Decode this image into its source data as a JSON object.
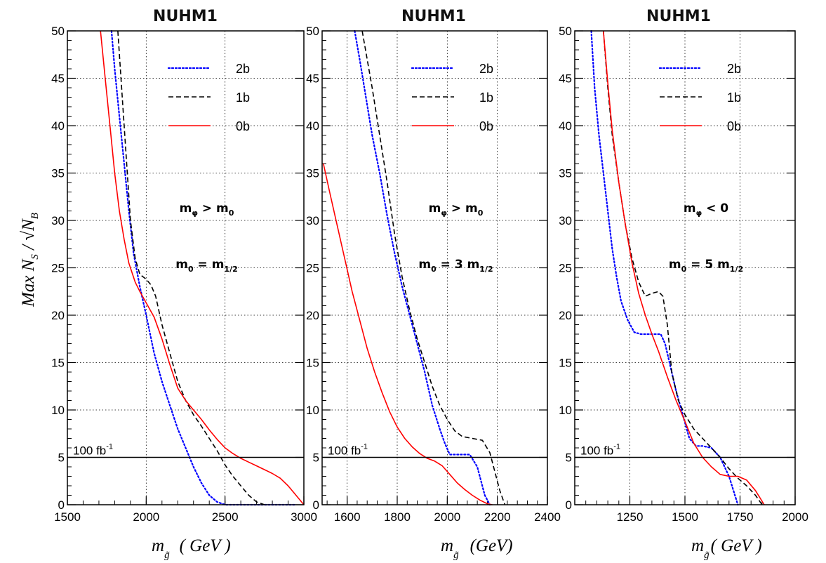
{
  "y_axis_title": {
    "lead": "Max N",
    "sub_s": "S",
    "mid": " / √N",
    "sub_b": "B"
  },
  "x_axis_title": {
    "m": "m",
    "sub": "g̃",
    "gev": "( GeV )",
    "gev_alt": "(GeV)"
  },
  "chart_data": [
    {
      "type": "line",
      "title": "NUHM1",
      "xlim": [
        1500,
        3000
      ],
      "ylim": [
        0,
        50
      ],
      "xticks": [
        "1500",
        "2000",
        "2500",
        "3000"
      ],
      "xtick_values": [
        1500,
        2000,
        2500,
        3000
      ],
      "yticks": [
        "0",
        "5",
        "10",
        "15",
        "20",
        "25",
        "30",
        "35",
        "40",
        "45",
        "50"
      ],
      "grid": true,
      "legend_position": "top-right",
      "annotation": {
        "lead": "m",
        "lead_sub": "φ",
        "rest": " > m",
        "rest_sub": "0",
        "tail": ""
      },
      "annotation2": {
        "lead": "m",
        "lead_sub": "0",
        "rest": " = m",
        "rest_sub": "1/2",
        "tail": ""
      },
      "reference_line": {
        "y": 5,
        "label": "100 fb",
        "label_sup": "-1"
      },
      "series": [
        {
          "name": "2b",
          "color": "#0000ff",
          "style": "dotted",
          "x": [
            1780,
            1800,
            1830,
            1860,
            1890,
            1920,
            1960,
            2000,
            2050,
            2100,
            2150,
            2200,
            2250,
            2300,
            2350,
            2400,
            2450,
            2500,
            2600,
            2700,
            2800,
            2950
          ],
          "y": [
            50,
            46,
            41,
            36,
            31,
            26.5,
            23,
            20,
            16,
            13,
            10.5,
            8,
            6,
            4,
            2.3,
            1,
            0.3,
            0,
            0,
            0,
            0,
            0
          ]
        },
        {
          "name": "1b",
          "color": "#000000",
          "style": "dashed",
          "x": [
            1820,
            1840,
            1860,
            1880,
            1900,
            1930,
            1960,
            2000,
            2030,
            2060,
            2100,
            2150,
            2200,
            2250,
            2300,
            2350,
            2400,
            2450,
            2500,
            2550,
            2600,
            2650,
            2700,
            2750
          ],
          "y": [
            50,
            45,
            40,
            35,
            30,
            26,
            24.3,
            23.8,
            23.2,
            22,
            19,
            16,
            13,
            11,
            9.5,
            8.3,
            7,
            5.7,
            4.2,
            3,
            2,
            1,
            0.3,
            0
          ]
        },
        {
          "name": "0b",
          "color": "#ff0000",
          "style": "solid",
          "x": [
            1710,
            1740,
            1770,
            1800,
            1830,
            1860,
            1890,
            1930,
            1960,
            2000,
            2050,
            2100,
            2150,
            2200,
            2250,
            2300,
            2350,
            2400,
            2450,
            2500,
            2550,
            2600,
            2650,
            2700,
            2750,
            2800,
            2850,
            2900,
            2950,
            3000
          ],
          "y": [
            50,
            45,
            40,
            35,
            31,
            28,
            25.5,
            23.5,
            22.5,
            21.3,
            19.8,
            17.5,
            14.8,
            12.3,
            11,
            10,
            9,
            7.9,
            6.9,
            6,
            5.4,
            4.9,
            4.5,
            4.1,
            3.7,
            3.3,
            2.8,
            2,
            1,
            0
          ]
        }
      ]
    },
    {
      "type": "line",
      "title": "NUHM1",
      "xlim": [
        1500,
        2400
      ],
      "ylim": [
        0,
        50
      ],
      "xticks": [
        "1600",
        "1800",
        "2000",
        "2200",
        "2400"
      ],
      "xtick_values": [
        1600,
        1800,
        2000,
        2200,
        2400
      ],
      "yticks": [
        "0",
        "5",
        "10",
        "15",
        "20",
        "25",
        "30",
        "35",
        "40",
        "45",
        "50"
      ],
      "grid": true,
      "legend_position": "top-right",
      "annotation": {
        "lead": "m",
        "lead_sub": "φ",
        "rest": " > m",
        "rest_sub": "0",
        "tail": ""
      },
      "annotation2": {
        "lead": "m",
        "lead_sub": "0",
        "rest": " = 3 m",
        "rest_sub": "1/2",
        "tail": ""
      },
      "reference_line": {
        "y": 5,
        "label": "100 fb",
        "label_sup": "-1"
      },
      "series": [
        {
          "name": "2b",
          "color": "#0000ff",
          "style": "dotted",
          "x": [
            1630,
            1650,
            1675,
            1700,
            1730,
            1760,
            1790,
            1820,
            1850,
            1880,
            1910,
            1940,
            1970,
            1990,
            2010,
            2030,
            2060,
            2090,
            2120,
            2150,
            2170
          ],
          "y": [
            50,
            47,
            43,
            39,
            35,
            30.5,
            26.5,
            23,
            20,
            17,
            14,
            10.5,
            8,
            6.5,
            5.3,
            5.3,
            5.3,
            5.3,
            4,
            1,
            0
          ]
        },
        {
          "name": "1b",
          "color": "#000000",
          "style": "dashed",
          "x": [
            1660,
            1680,
            1700,
            1730,
            1760,
            1790,
            1820,
            1850,
            1880,
            1910,
            1940,
            1970,
            2000,
            2030,
            2060,
            2100,
            2140,
            2170,
            2190,
            2210,
            2230
          ],
          "y": [
            50,
            47,
            44,
            39,
            34,
            28.5,
            24,
            20.5,
            17.5,
            15,
            12.5,
            10.5,
            9,
            7.8,
            7.2,
            7,
            6.8,
            5.5,
            3.5,
            1.5,
            0
          ]
        },
        {
          "name": "0b",
          "color": "#ff0000",
          "style": "solid",
          "x": [
            1505,
            1530,
            1560,
            1590,
            1620,
            1650,
            1680,
            1710,
            1740,
            1770,
            1800,
            1830,
            1860,
            1890,
            1920,
            1950,
            1980,
            2010,
            2040,
            2070,
            2100,
            2130,
            2160,
            2180
          ],
          "y": [
            36,
            33,
            29.5,
            26,
            22.5,
            19.5,
            16.5,
            14,
            11.8,
            9.8,
            8.2,
            7,
            6.1,
            5.4,
            4.9,
            4.6,
            4.1,
            3.2,
            2.3,
            1.6,
            1,
            0.5,
            0.1,
            0
          ]
        }
      ]
    },
    {
      "type": "line",
      "title": "NUHM1",
      "xlim": [
        1000,
        2000
      ],
      "ylim": [
        0,
        50
      ],
      "xticks": [
        "1250",
        "1500",
        "1750",
        "2000"
      ],
      "xtick_values": [
        1250,
        1500,
        1750,
        2000
      ],
      "yticks": [
        "0",
        "5",
        "10",
        "15",
        "20",
        "25",
        "30",
        "35",
        "40",
        "45",
        "50"
      ],
      "grid": true,
      "legend_position": "top-right",
      "annotation": {
        "lead": "m",
        "lead_sub": "φ",
        "rest": " < 0",
        "rest_sub": "",
        "tail": ""
      },
      "annotation2": {
        "lead": "m",
        "lead_sub": "0",
        "rest": " = 5 m",
        "rest_sub": "1/2",
        "tail": ""
      },
      "reference_line": {
        "y": 5,
        "label": "100 fb",
        "label_sup": "-1"
      },
      "series": [
        {
          "name": "2b",
          "color": "#0000ff",
          "style": "dotted",
          "x": [
            1075,
            1090,
            1110,
            1130,
            1150,
            1170,
            1190,
            1210,
            1240,
            1270,
            1300,
            1330,
            1360,
            1390,
            1410,
            1430,
            1460,
            1490,
            1520,
            1550,
            1580,
            1620,
            1660,
            1700,
            1740
          ],
          "y": [
            50,
            44,
            39,
            35,
            31,
            27,
            24,
            21.5,
            19.5,
            18.2,
            18,
            18,
            18,
            18,
            17,
            15,
            12,
            9.5,
            7,
            6.2,
            6.2,
            6,
            5,
            3,
            0
          ]
        },
        {
          "name": "1b",
          "color": "#000000",
          "style": "dashed",
          "x": [
            1130,
            1150,
            1170,
            1200,
            1230,
            1260,
            1290,
            1320,
            1350,
            1380,
            1400,
            1420,
            1440,
            1470,
            1500,
            1540,
            1580,
            1620,
            1660,
            1700,
            1740,
            1780,
            1820,
            1850
          ],
          "y": [
            50,
            44,
            39,
            34,
            29.5,
            26,
            23.5,
            22,
            22.3,
            22.5,
            22,
            19,
            14,
            11,
            9.5,
            8,
            7,
            6,
            5,
            3.8,
            2.8,
            2,
            1,
            0
          ]
        },
        {
          "name": "0b",
          "color": "#ff0000",
          "style": "solid",
          "x": [
            1130,
            1150,
            1170,
            1200,
            1230,
            1260,
            1290,
            1320,
            1350,
            1380,
            1420,
            1460,
            1500,
            1540,
            1580,
            1620,
            1660,
            1700,
            1740,
            1780,
            1820,
            1860
          ],
          "y": [
            50,
            44.5,
            39.5,
            34,
            29.5,
            25.5,
            22.3,
            20,
            18,
            16.2,
            13.5,
            11,
            8.8,
            6.5,
            5,
            4,
            3.2,
            3,
            3,
            2.6,
            1.5,
            0
          ]
        }
      ]
    }
  ]
}
